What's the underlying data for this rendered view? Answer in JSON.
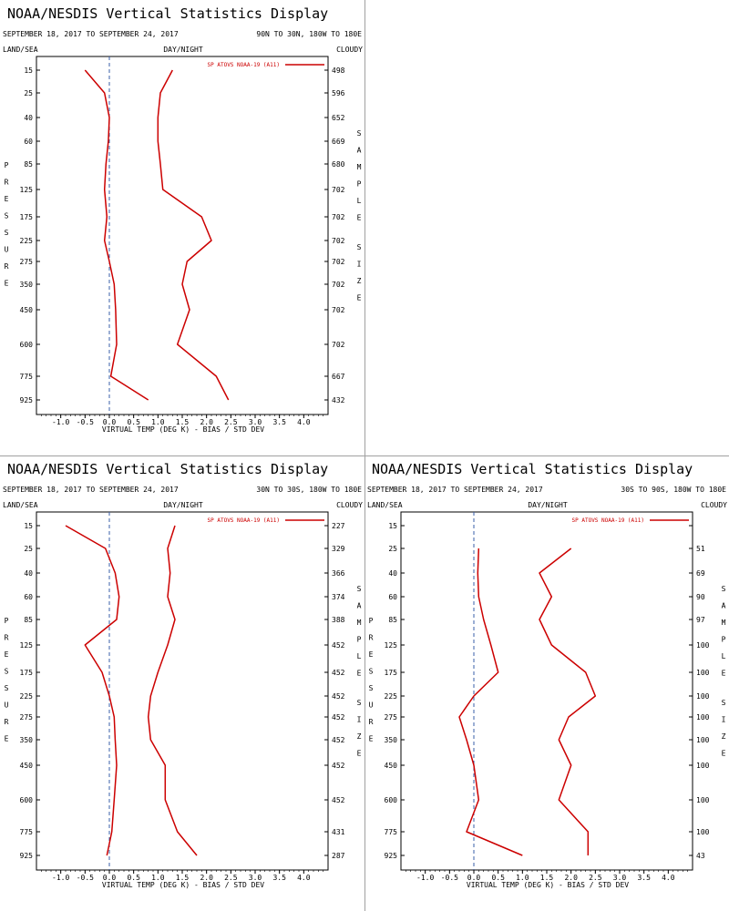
{
  "colors": {
    "series": "#cc0000",
    "zero_line": "#3a5fa8",
    "divider": "#a0a0a0"
  },
  "chart_data": [
    {
      "type": "line",
      "title": "NOAA/NESDIS Vertical Statistics Display",
      "date_range": "SEPTEMBER 18, 2017 TO SEPTEMBER 24, 2017",
      "region": "90N TO 30N, 180W TO 180E",
      "corner_left": "LAND/SEA",
      "corner_center": "DAY/NIGHT",
      "corner_right": "CLOUDY",
      "legend": "SP ATOVS NOAA-19 (A11)",
      "left_axis_label": "PRESSURE",
      "right_axis_label_1": "SAMPLE",
      "right_axis_label_2": "SIZE",
      "xlabel": "VIRTUAL TEMP (DEG K) - BIAS / STD DEV",
      "xlim": [
        -1.5,
        4.5
      ],
      "x_ticks": [
        "-1.0",
        "-0.5",
        "0.0",
        "0.5",
        "1.0",
        "1.5",
        "2.0",
        "2.5",
        "3.0",
        "3.5",
        "4.0"
      ],
      "pressure_levels": [
        "15",
        "25",
        "40",
        "60",
        "85",
        "125",
        "175",
        "225",
        "275",
        "350",
        "450",
        "600",
        "775",
        "925"
      ],
      "sample_size": [
        "498",
        "596",
        "652",
        "669",
        "680",
        "702",
        "702",
        "702",
        "702",
        "702",
        "702",
        "702",
        "667",
        "432"
      ],
      "series": [
        {
          "values": [
            -0.5,
            -0.1,
            0.0,
            -0.02,
            -0.07,
            -0.1,
            -0.05,
            -0.1,
            0.0,
            0.1,
            0.13,
            0.15,
            0.03,
            0.8
          ]
        },
        {
          "values": [
            1.3,
            1.05,
            1.0,
            1.0,
            1.05,
            1.1,
            1.9,
            2.1,
            1.6,
            1.5,
            1.65,
            1.4,
            2.2,
            2.45
          ]
        }
      ]
    },
    {
      "type": "line",
      "title": "NOAA/NESDIS Vertical Statistics Display",
      "date_range": "SEPTEMBER 18, 2017 TO SEPTEMBER 24, 2017",
      "region": "30N TO 30S, 180W TO 180E",
      "corner_left": "LAND/SEA",
      "corner_center": "DAY/NIGHT",
      "corner_right": "CLOUDY",
      "legend": "SP ATOVS NOAA-19 (A11)",
      "left_axis_label": "PRESSURE",
      "right_axis_label_1": "SAMPLE",
      "right_axis_label_2": "SIZE",
      "xlabel": "VIRTUAL TEMP (DEG K) - BIAS / STD DEV",
      "xlim": [
        -1.5,
        4.5
      ],
      "x_ticks": [
        "-1.0",
        "-0.5",
        "0.0",
        "0.5",
        "1.0",
        "1.5",
        "2.0",
        "2.5",
        "3.0",
        "3.5",
        "4.0"
      ],
      "pressure_levels": [
        "15",
        "25",
        "40",
        "60",
        "85",
        "125",
        "175",
        "225",
        "275",
        "350",
        "450",
        "600",
        "775",
        "925"
      ],
      "sample_size": [
        "227",
        "329",
        "366",
        "374",
        "388",
        "452",
        "452",
        "452",
        "452",
        "452",
        "452",
        "452",
        "431",
        "287"
      ],
      "series": [
        {
          "values": [
            -0.9,
            -0.08,
            0.12,
            0.2,
            0.15,
            -0.5,
            -0.15,
            0.0,
            0.1,
            0.12,
            0.15,
            0.1,
            0.05,
            -0.05
          ]
        },
        {
          "values": [
            1.35,
            1.2,
            1.25,
            1.2,
            1.35,
            1.2,
            1.0,
            0.85,
            0.8,
            0.85,
            1.15,
            1.15,
            1.4,
            1.8
          ]
        }
      ]
    },
    {
      "type": "line",
      "title": "NOAA/NESDIS Vertical Statistics Display",
      "date_range": "SEPTEMBER 18, 2017 TO SEPTEMBER 24, 2017",
      "region": "30S TO 90S, 180W TO 180E",
      "corner_left": "LAND/SEA",
      "corner_center": "DAY/NIGHT",
      "corner_right": "CLOUDY",
      "legend": "SP ATOVS NOAA-19 (A11)",
      "left_axis_label": "PRESSURE",
      "right_axis_label_1": "SAMPLE",
      "right_axis_label_2": "SIZE",
      "xlabel": "VIRTUAL TEMP (DEG K) - BIAS / STD DEV",
      "xlim": [
        -1.5,
        4.5
      ],
      "x_ticks": [
        "-1.0",
        "-0.5",
        "0.0",
        "0.5",
        "1.0",
        "1.5",
        "2.0",
        "2.5",
        "3.0",
        "3.5",
        "4.0"
      ],
      "pressure_levels": [
        "15",
        "25",
        "40",
        "60",
        "85",
        "125",
        "175",
        "225",
        "275",
        "350",
        "450",
        "600",
        "775",
        "925"
      ],
      "sample_size": [
        "",
        "51",
        "69",
        "90",
        "97",
        "100",
        "100",
        "100",
        "100",
        "100",
        "100",
        "100",
        "100",
        "43"
      ],
      "series": [
        {
          "values": [
            null,
            0.1,
            0.08,
            0.1,
            0.2,
            0.35,
            0.5,
            0.0,
            -0.3,
            -0.15,
            0.0,
            0.1,
            -0.15,
            1.0
          ]
        },
        {
          "values": [
            null,
            2.0,
            1.35,
            1.6,
            1.35,
            1.6,
            2.3,
            2.5,
            1.95,
            1.75,
            2.0,
            1.75,
            2.35,
            2.35
          ]
        }
      ]
    }
  ]
}
